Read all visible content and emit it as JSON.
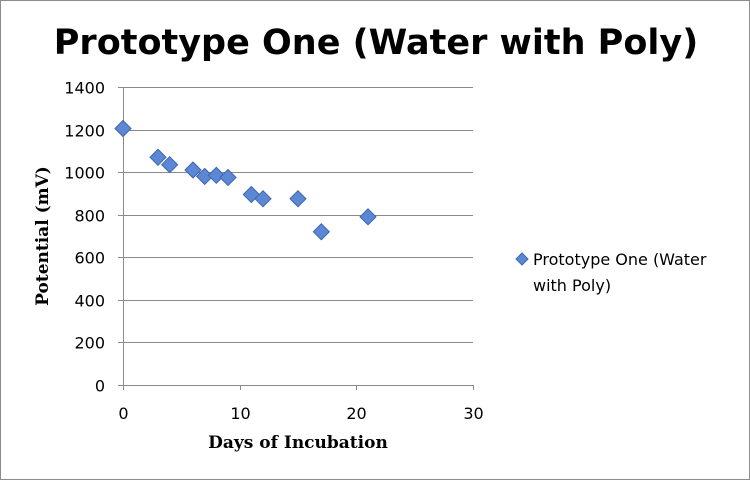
{
  "chart_data": {
    "type": "scatter",
    "title": "Prototype One (Water with Poly)",
    "xlabel": "Days of Incubation",
    "ylabel": "Potential (mV)",
    "xlim": [
      0,
      30
    ],
    "ylim": [
      0,
      1400
    ],
    "x_ticks": [
      0,
      10,
      20,
      30
    ],
    "y_ticks": [
      0,
      200,
      400,
      600,
      800,
      1000,
      1200,
      1400
    ],
    "grid": "horizontal",
    "legend_position": "right",
    "marker": "diamond",
    "colors": {
      "marker_fill": "#5b87d4",
      "marker_stroke": "#3f67ad",
      "grid": "#8a8a8a"
    },
    "series": [
      {
        "name": "Prototype One (Water with Poly)",
        "legend_lines": [
          "Prototype One (Water",
          "with Poly)"
        ],
        "x": [
          0,
          3,
          4,
          6,
          7,
          8,
          9,
          11,
          12,
          15,
          17,
          21
        ],
        "y": [
          1205,
          1070,
          1035,
          1010,
          980,
          985,
          975,
          895,
          875,
          875,
          720,
          790
        ]
      }
    ]
  }
}
